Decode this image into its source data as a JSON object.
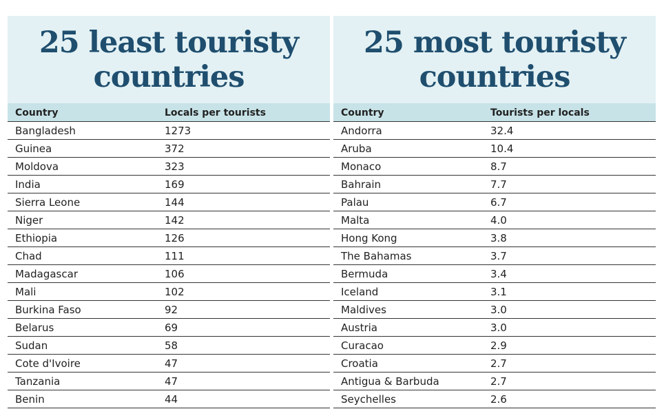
{
  "tables": [
    {
      "title": "25 least touristy countries",
      "columns": [
        "Country",
        "Locals per tourists"
      ],
      "rows": [
        [
          "Bangladesh",
          "1273"
        ],
        [
          "Guinea",
          "372"
        ],
        [
          "Moldova",
          "323"
        ],
        [
          "India",
          "169"
        ],
        [
          "Sierra Leone",
          "144"
        ],
        [
          "Niger",
          "142"
        ],
        [
          "Ethiopia",
          "126"
        ],
        [
          "Chad",
          "111"
        ],
        [
          "Madagascar",
          "106"
        ],
        [
          "Mali",
          "102"
        ],
        [
          "Burkina Faso",
          "92"
        ],
        [
          "Belarus",
          "69"
        ],
        [
          "Sudan",
          "58"
        ],
        [
          "Cote d'Ivoire",
          "47"
        ],
        [
          "Tanzania",
          "47"
        ],
        [
          "Benin",
          "44"
        ]
      ]
    },
    {
      "title": "25 most touristy countries",
      "columns": [
        "Country",
        "Tourists per locals"
      ],
      "rows": [
        [
          "Andorra",
          "32.4"
        ],
        [
          "Aruba",
          "10.4"
        ],
        [
          "Monaco",
          "8.7"
        ],
        [
          "Bahrain",
          "7.7"
        ],
        [
          "Palau",
          "6.7"
        ],
        [
          "Malta",
          "4.0"
        ],
        [
          "Hong Kong",
          "3.8"
        ],
        [
          "The Bahamas",
          "3.7"
        ],
        [
          "Bermuda",
          "3.4"
        ],
        [
          "Iceland",
          "3.1"
        ],
        [
          "Maldives",
          "3.0"
        ],
        [
          "Austria",
          "3.0"
        ],
        [
          "Curacao",
          "2.9"
        ],
        [
          "Croatia",
          "2.7"
        ],
        [
          "Antigua & Barbuda",
          "2.7"
        ],
        [
          "Seychelles",
          "2.6"
        ]
      ]
    }
  ]
}
